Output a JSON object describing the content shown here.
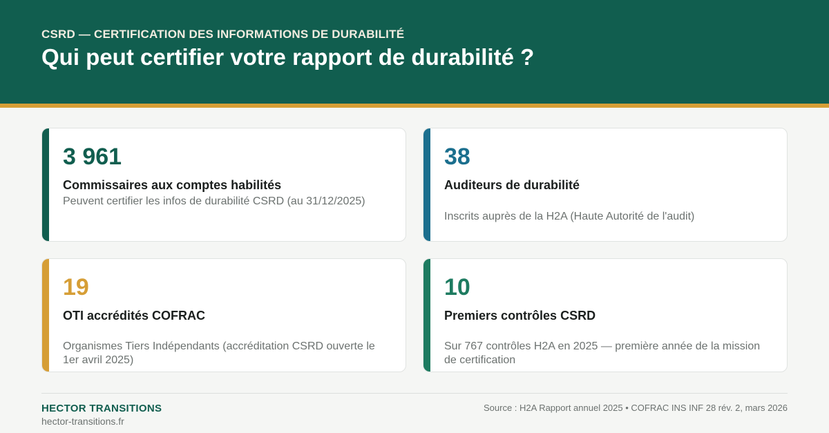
{
  "header": {
    "kicker": "CSRD — CERTIFICATION DES INFORMATIONS DE DURABILITÉ",
    "title": "Qui peut certifier votre rapport de durabilité ?"
  },
  "colors": {
    "brand_green": "#115e4f",
    "accent_gold": "#d69e36",
    "blue": "#1b6f8e",
    "teal_green": "#1d7b60"
  },
  "cards": [
    {
      "value": "3 961",
      "label": "Commissaires aux comptes habilités",
      "description": "Peuvent certifier les infos de durabilité CSRD (au 31/12/2025)",
      "color": "#115e4f"
    },
    {
      "value": "38",
      "label": "Auditeurs de durabilité",
      "description": "Inscrits auprès de la H2A (Haute Autorité de l'audit)",
      "color": "#1b6f8e"
    },
    {
      "value": "19",
      "label": "OTI accrédités COFRAC",
      "description": "Organismes Tiers Indépendants (accréditation CSRD ouverte le 1er avril 2025)",
      "color": "#d69e36"
    },
    {
      "value": "10",
      "label": "Premiers contrôles CSRD",
      "description": "Sur 767 contrôles H2A en 2025 — première année de la mission de certification",
      "color": "#1d7b60"
    }
  ],
  "footer": {
    "brand": "HECTOR TRANSITIONS",
    "website": "hector-transitions.fr",
    "source": "Source : H2A Rapport annuel 2025 • COFRAC INS INF 28 rév. 2, mars 2026"
  }
}
